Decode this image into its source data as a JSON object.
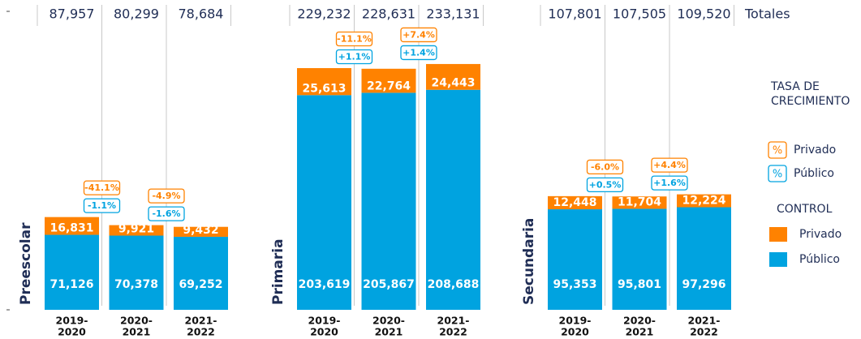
{
  "chart_data": [
    {
      "type": "bar",
      "stacked": true,
      "title": "Preescolar",
      "categories": [
        [
          "2019-",
          "2020"
        ],
        [
          "2020-",
          "2021"
        ],
        [
          "2021-",
          "2022"
        ]
      ],
      "series": [
        {
          "name": "Público",
          "color": "#00a3e0",
          "values": [
            71126,
            70378,
            69252
          ],
          "value_labels": [
            "71,126",
            "70,378",
            "69,252"
          ]
        },
        {
          "name": "Privado",
          "color": "#ff8200",
          "values": [
            16831,
            9921,
            9432
          ],
          "value_labels": [
            "16,831",
            "9,921",
            "9,432"
          ]
        }
      ],
      "totals": {
        "values": [
          87957,
          80299,
          78684
        ],
        "value_labels": [
          "87,957",
          "80,299",
          "78,684"
        ]
      },
      "growth_privado": {
        "values": [
          -41.1,
          -4.9
        ],
        "value_labels": [
          "-41.1%",
          "-4.9%"
        ]
      },
      "growth_publico": {
        "values": [
          -1.1,
          -1.6
        ],
        "value_labels": [
          "-1.1%",
          "-1.6%"
        ]
      },
      "ylim": [
        0,
        280000
      ]
    },
    {
      "type": "bar",
      "stacked": true,
      "title": "Primaria",
      "categories": [
        [
          "2019-",
          "2020"
        ],
        [
          "2020-",
          "2021"
        ],
        [
          "2021-",
          "2022"
        ]
      ],
      "series": [
        {
          "name": "Público",
          "color": "#00a3e0",
          "values": [
            203619,
            205867,
            208688
          ],
          "value_labels": [
            "203,619",
            "205,867",
            "208,688"
          ]
        },
        {
          "name": "Privado",
          "color": "#ff8200",
          "values": [
            25613,
            22764,
            24443
          ],
          "value_labels": [
            "25,613",
            "22,764",
            "24,443"
          ]
        }
      ],
      "totals": {
        "values": [
          229232,
          228631,
          233131
        ],
        "value_labels": [
          "229,232",
          "228,631",
          "233,131"
        ]
      },
      "growth_privado": {
        "values": [
          -11.1,
          7.4
        ],
        "value_labels": [
          "-11.1%",
          "+7.4%"
        ]
      },
      "growth_publico": {
        "values": [
          1.1,
          1.4
        ],
        "value_labels": [
          "+1.1%",
          "+1.4%"
        ]
      },
      "ylim": [
        0,
        280000
      ]
    },
    {
      "type": "bar",
      "stacked": true,
      "title": "Secundaria",
      "categories": [
        [
          "2019-",
          "2020"
        ],
        [
          "2020-",
          "2021"
        ],
        [
          "2021-",
          "2022"
        ]
      ],
      "series": [
        {
          "name": "Público",
          "color": "#00a3e0",
          "values": [
            95353,
            95801,
            97296
          ],
          "value_labels": [
            "95,353",
            "95,801",
            "97,296"
          ]
        },
        {
          "name": "Privado",
          "color": "#ff8200",
          "values": [
            12448,
            11704,
            12224
          ],
          "value_labels": [
            "12,448",
            "11,704",
            "12,224"
          ]
        }
      ],
      "totals": {
        "values": [
          107801,
          107505,
          109520
        ],
        "value_labels": [
          "107,801",
          "107,505",
          "109,520"
        ]
      },
      "growth_privado": {
        "values": [
          -6.0,
          4.4
        ],
        "value_labels": [
          "-6.0%",
          "+4.4%"
        ]
      },
      "growth_publico": {
        "values": [
          0.5,
          1.6
        ],
        "value_labels": [
          "+0.5%",
          "+1.6%"
        ]
      },
      "ylim": [
        0,
        280000
      ]
    }
  ],
  "legend": {
    "totals_label": "Totales",
    "growth_title": [
      "TASA DE",
      "CRECIMIENTO"
    ],
    "growth_symbol": "%",
    "control_title": "CONTROL"
  }
}
